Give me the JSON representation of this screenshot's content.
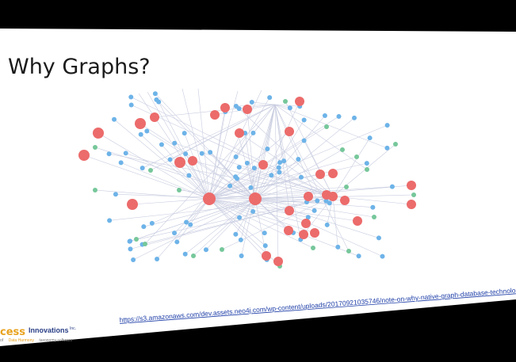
{
  "slide": {
    "title": "Why Graphs?",
    "url": "https://s3.amazonaws.com/dev.assets.neo4j.com/wp-content/uploads/20170921035746/note-on-why-native-graph-database-technology.png"
  },
  "logo": {
    "big": "cess",
    "small": "Innovations",
    "sup": "Inc.",
    "tagline_prefix": "of",
    "tagline_brand": "Data Harmony",
    "tagline_suffix": "taxonomy software"
  },
  "colors": {
    "background": "#000000",
    "slide": "#ffffff",
    "node_red": "#ec6b6b",
    "node_blue": "#6db3e8",
    "node_green": "#76c79a",
    "edge": "#c9cde0"
  }
}
